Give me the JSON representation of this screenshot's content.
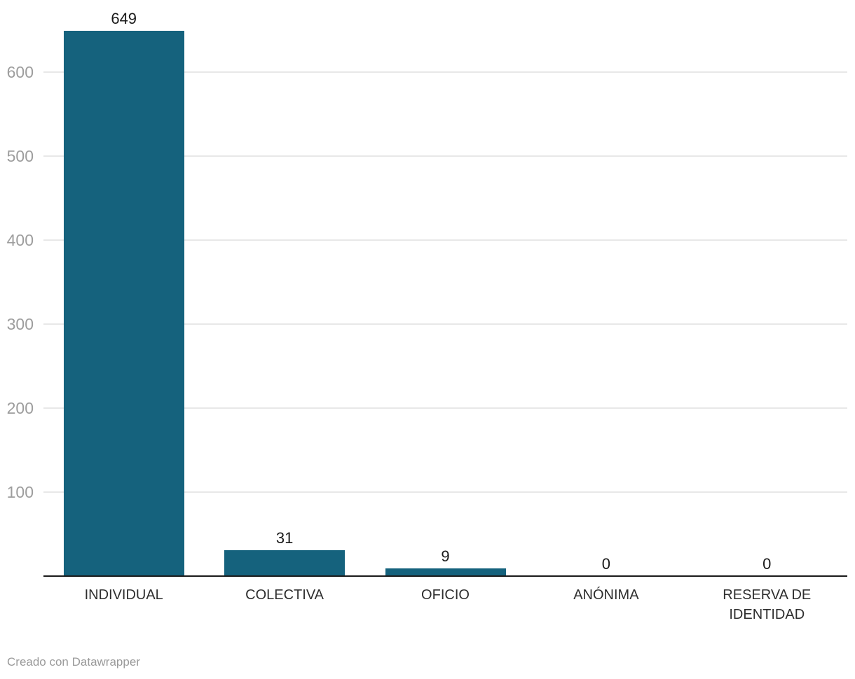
{
  "chart_data": {
    "type": "bar",
    "categories": [
      "INDIVIDUAL",
      "COLECTIVA",
      "OFICIO",
      "ANÓNIMA",
      "RESERVA DE IDENTIDAD"
    ],
    "values": [
      649,
      31,
      9,
      0,
      0
    ],
    "value_labels": [
      "649",
      "31",
      "9",
      "0",
      "0"
    ],
    "title": "",
    "xlabel": "",
    "ylabel": "",
    "ylim": [
      0,
      660
    ],
    "yticks": [
      100,
      200,
      300,
      400,
      500,
      600
    ],
    "grid": true,
    "legend": "none",
    "bar_color": "#15627d"
  },
  "colors": {
    "bar": "#15627d",
    "grid": "#e8e8e8",
    "axis_line": "#1a1a1a",
    "tick_label": "#9d9d9d",
    "category_label": "#2e2e2e",
    "value_label": "#1a1a1a",
    "footer_text": "#9a9a9a",
    "background": "#ffffff"
  },
  "footer": {
    "attribution": "Creado con Datawrapper"
  }
}
